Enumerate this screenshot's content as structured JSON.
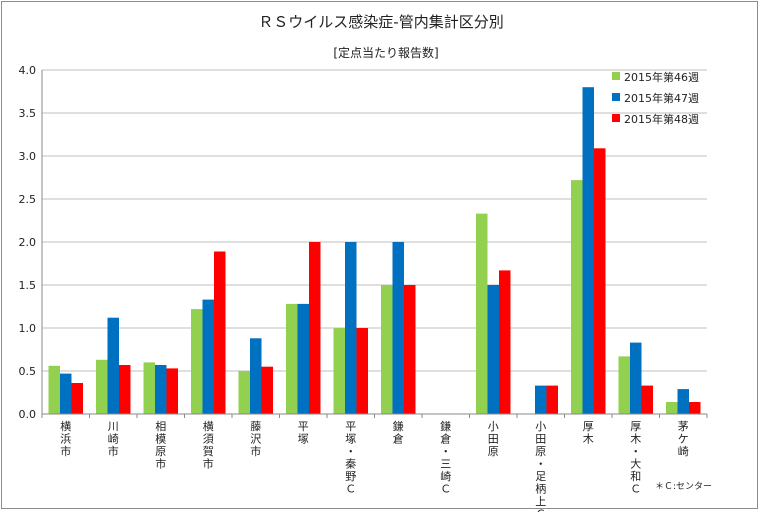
{
  "colors": {
    "s1": "#92d050",
    "s2": "#0070c0",
    "s3": "#ff0000",
    "grid": "#bfbfbf",
    "axis": "#888888"
  },
  "chart_data": {
    "type": "bar",
    "title": "ＲＳウイルス感染症-管内集計区分別",
    "subtitle": "[定点当たり報告数]",
    "ylim": [
      0,
      4.0
    ],
    "yticks": [
      "0.0",
      "0.5",
      "1.0",
      "1.5",
      "2.0",
      "2.5",
      "3.0",
      "3.5",
      "4.0"
    ],
    "grid": true,
    "legend_position": "top-right",
    "note": "＊Ｃ:センター",
    "categories": [
      "横浜市",
      "川崎市",
      "相模原市",
      "横須賀市",
      "藤沢市",
      "平塚",
      "平塚・秦野Ｃ",
      "鎌倉",
      "鎌倉・三崎Ｃ",
      "小田原",
      "小田原・足柄上Ｃ",
      "厚木",
      "厚木・大和Ｃ",
      "茅ケ崎"
    ],
    "series": [
      {
        "name": "2015年第46週",
        "values": [
          0.56,
          0.63,
          0.6,
          1.22,
          0.5,
          1.28,
          1.0,
          1.5,
          0,
          2.33,
          0,
          2.72,
          0.67,
          0.14
        ]
      },
      {
        "name": "2015年第47週",
        "values": [
          0.47,
          1.12,
          0.57,
          1.33,
          0.88,
          1.28,
          2.0,
          2.0,
          0,
          1.5,
          0.33,
          3.8,
          0.83,
          0.29
        ]
      },
      {
        "name": "2015年第48週",
        "values": [
          0.36,
          0.57,
          0.53,
          1.89,
          0.55,
          2.0,
          1.0,
          1.5,
          0,
          1.67,
          0.33,
          3.09,
          0.33,
          0.14
        ]
      }
    ]
  }
}
